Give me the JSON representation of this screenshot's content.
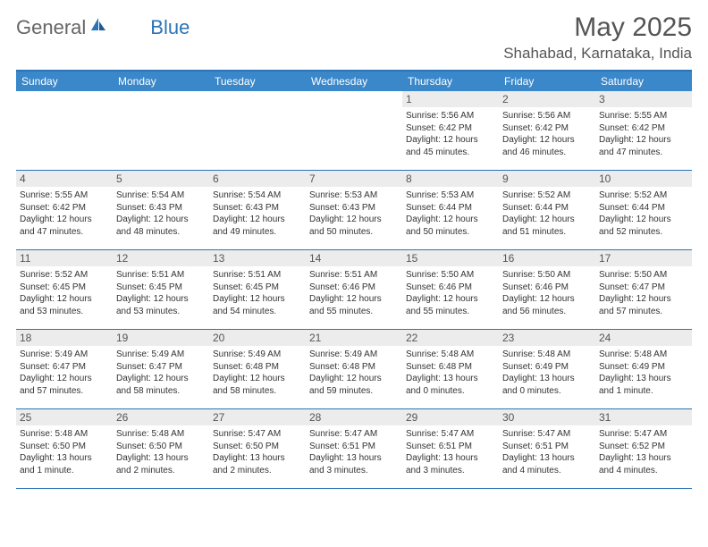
{
  "brand": {
    "name1": "General",
    "name2": "Blue"
  },
  "title": "May 2025",
  "location": "Shahabad, Karnataka, India",
  "colors": {
    "header_bg": "#3a87c9",
    "header_border": "#2b74b8",
    "daybar_bg": "#ececec",
    "text": "#333333",
    "brand_gray": "#666666",
    "brand_blue": "#2b74b8"
  },
  "typography": {
    "title_fontsize": 30,
    "location_fontsize": 17,
    "dayhead_fontsize": 12,
    "daynum_fontsize": 12,
    "info_fontsize": 10
  },
  "day_headers": [
    "Sunday",
    "Monday",
    "Tuesday",
    "Wednesday",
    "Thursday",
    "Friday",
    "Saturday"
  ],
  "weeks": [
    [
      {
        "n": "",
        "sr": "",
        "ss": "",
        "dl": ""
      },
      {
        "n": "",
        "sr": "",
        "ss": "",
        "dl": ""
      },
      {
        "n": "",
        "sr": "",
        "ss": "",
        "dl": ""
      },
      {
        "n": "",
        "sr": "",
        "ss": "",
        "dl": ""
      },
      {
        "n": "1",
        "sr": "Sunrise: 5:56 AM",
        "ss": "Sunset: 6:42 PM",
        "dl": "Daylight: 12 hours and 45 minutes."
      },
      {
        "n": "2",
        "sr": "Sunrise: 5:56 AM",
        "ss": "Sunset: 6:42 PM",
        "dl": "Daylight: 12 hours and 46 minutes."
      },
      {
        "n": "3",
        "sr": "Sunrise: 5:55 AM",
        "ss": "Sunset: 6:42 PM",
        "dl": "Daylight: 12 hours and 47 minutes."
      }
    ],
    [
      {
        "n": "4",
        "sr": "Sunrise: 5:55 AM",
        "ss": "Sunset: 6:42 PM",
        "dl": "Daylight: 12 hours and 47 minutes."
      },
      {
        "n": "5",
        "sr": "Sunrise: 5:54 AM",
        "ss": "Sunset: 6:43 PM",
        "dl": "Daylight: 12 hours and 48 minutes."
      },
      {
        "n": "6",
        "sr": "Sunrise: 5:54 AM",
        "ss": "Sunset: 6:43 PM",
        "dl": "Daylight: 12 hours and 49 minutes."
      },
      {
        "n": "7",
        "sr": "Sunrise: 5:53 AM",
        "ss": "Sunset: 6:43 PM",
        "dl": "Daylight: 12 hours and 50 minutes."
      },
      {
        "n": "8",
        "sr": "Sunrise: 5:53 AM",
        "ss": "Sunset: 6:44 PM",
        "dl": "Daylight: 12 hours and 50 minutes."
      },
      {
        "n": "9",
        "sr": "Sunrise: 5:52 AM",
        "ss": "Sunset: 6:44 PM",
        "dl": "Daylight: 12 hours and 51 minutes."
      },
      {
        "n": "10",
        "sr": "Sunrise: 5:52 AM",
        "ss": "Sunset: 6:44 PM",
        "dl": "Daylight: 12 hours and 52 minutes."
      }
    ],
    [
      {
        "n": "11",
        "sr": "Sunrise: 5:52 AM",
        "ss": "Sunset: 6:45 PM",
        "dl": "Daylight: 12 hours and 53 minutes."
      },
      {
        "n": "12",
        "sr": "Sunrise: 5:51 AM",
        "ss": "Sunset: 6:45 PM",
        "dl": "Daylight: 12 hours and 53 minutes."
      },
      {
        "n": "13",
        "sr": "Sunrise: 5:51 AM",
        "ss": "Sunset: 6:45 PM",
        "dl": "Daylight: 12 hours and 54 minutes."
      },
      {
        "n": "14",
        "sr": "Sunrise: 5:51 AM",
        "ss": "Sunset: 6:46 PM",
        "dl": "Daylight: 12 hours and 55 minutes."
      },
      {
        "n": "15",
        "sr": "Sunrise: 5:50 AM",
        "ss": "Sunset: 6:46 PM",
        "dl": "Daylight: 12 hours and 55 minutes."
      },
      {
        "n": "16",
        "sr": "Sunrise: 5:50 AM",
        "ss": "Sunset: 6:46 PM",
        "dl": "Daylight: 12 hours and 56 minutes."
      },
      {
        "n": "17",
        "sr": "Sunrise: 5:50 AM",
        "ss": "Sunset: 6:47 PM",
        "dl": "Daylight: 12 hours and 57 minutes."
      }
    ],
    [
      {
        "n": "18",
        "sr": "Sunrise: 5:49 AM",
        "ss": "Sunset: 6:47 PM",
        "dl": "Daylight: 12 hours and 57 minutes."
      },
      {
        "n": "19",
        "sr": "Sunrise: 5:49 AM",
        "ss": "Sunset: 6:47 PM",
        "dl": "Daylight: 12 hours and 58 minutes."
      },
      {
        "n": "20",
        "sr": "Sunrise: 5:49 AM",
        "ss": "Sunset: 6:48 PM",
        "dl": "Daylight: 12 hours and 58 minutes."
      },
      {
        "n": "21",
        "sr": "Sunrise: 5:49 AM",
        "ss": "Sunset: 6:48 PM",
        "dl": "Daylight: 12 hours and 59 minutes."
      },
      {
        "n": "22",
        "sr": "Sunrise: 5:48 AM",
        "ss": "Sunset: 6:48 PM",
        "dl": "Daylight: 13 hours and 0 minutes."
      },
      {
        "n": "23",
        "sr": "Sunrise: 5:48 AM",
        "ss": "Sunset: 6:49 PM",
        "dl": "Daylight: 13 hours and 0 minutes."
      },
      {
        "n": "24",
        "sr": "Sunrise: 5:48 AM",
        "ss": "Sunset: 6:49 PM",
        "dl": "Daylight: 13 hours and 1 minute."
      }
    ],
    [
      {
        "n": "25",
        "sr": "Sunrise: 5:48 AM",
        "ss": "Sunset: 6:50 PM",
        "dl": "Daylight: 13 hours and 1 minute."
      },
      {
        "n": "26",
        "sr": "Sunrise: 5:48 AM",
        "ss": "Sunset: 6:50 PM",
        "dl": "Daylight: 13 hours and 2 minutes."
      },
      {
        "n": "27",
        "sr": "Sunrise: 5:47 AM",
        "ss": "Sunset: 6:50 PM",
        "dl": "Daylight: 13 hours and 2 minutes."
      },
      {
        "n": "28",
        "sr": "Sunrise: 5:47 AM",
        "ss": "Sunset: 6:51 PM",
        "dl": "Daylight: 13 hours and 3 minutes."
      },
      {
        "n": "29",
        "sr": "Sunrise: 5:47 AM",
        "ss": "Sunset: 6:51 PM",
        "dl": "Daylight: 13 hours and 3 minutes."
      },
      {
        "n": "30",
        "sr": "Sunrise: 5:47 AM",
        "ss": "Sunset: 6:51 PM",
        "dl": "Daylight: 13 hours and 4 minutes."
      },
      {
        "n": "31",
        "sr": "Sunrise: 5:47 AM",
        "ss": "Sunset: 6:52 PM",
        "dl": "Daylight: 13 hours and 4 minutes."
      }
    ]
  ]
}
